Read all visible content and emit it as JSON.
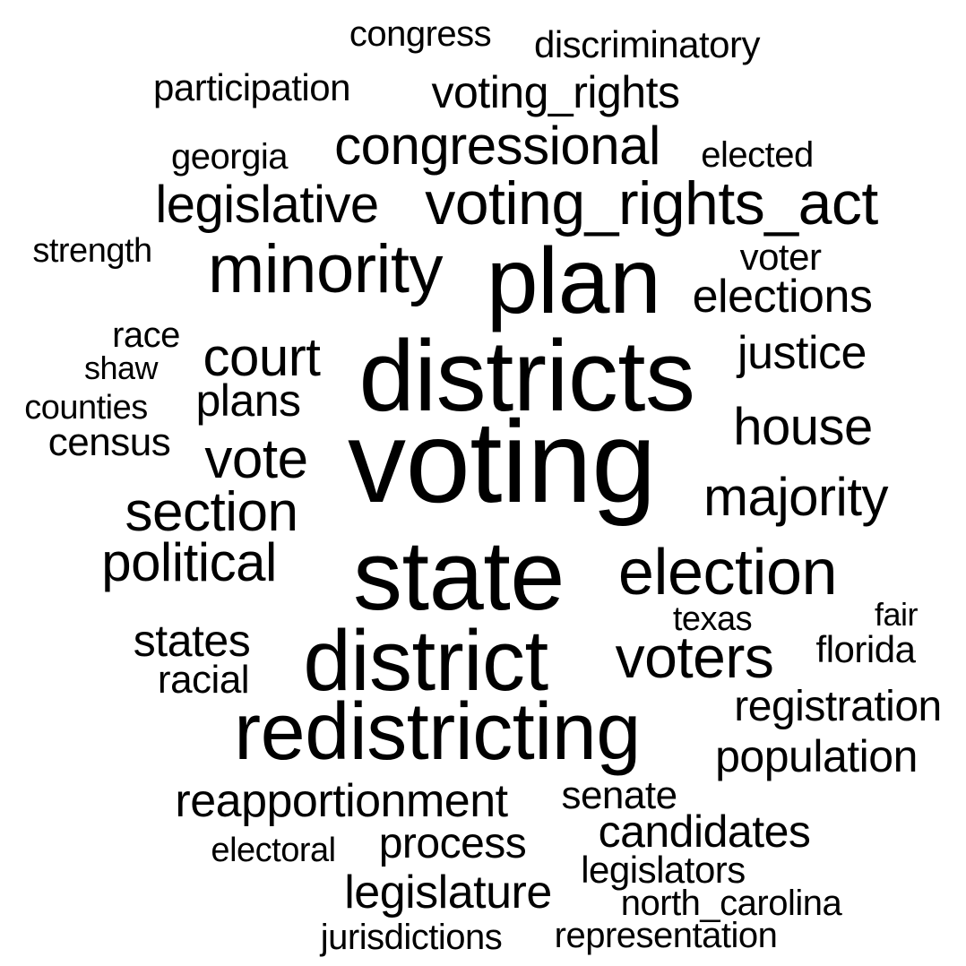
{
  "cloud": {
    "text_color": "#000000",
    "background": "#ffffff",
    "words": [
      "voting",
      "districts",
      "state",
      "district",
      "redistricting",
      "plan",
      "minority",
      "voting_rights_act",
      "election",
      "voters",
      "majority",
      "section",
      "congressional",
      "house",
      "political",
      "court",
      "vote",
      "elections",
      "legislative",
      "legislature",
      "justice",
      "reapportionment",
      "candidates",
      "voting_rights",
      "population",
      "process",
      "plans",
      "registration",
      "states",
      "senate",
      "census",
      "legislators",
      "jurisdictions",
      "representation",
      "discriminatory",
      "racial",
      "participation",
      "florida",
      "voter",
      "north_carolina",
      "electoral",
      "race",
      "elected",
      "texas",
      "congress",
      "georgia",
      "counties",
      "shaw",
      "strength",
      "fair"
    ]
  }
}
